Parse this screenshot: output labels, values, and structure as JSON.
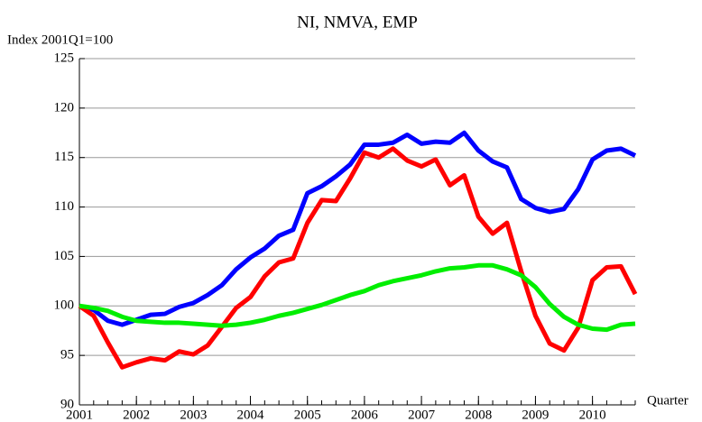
{
  "chart_data": {
    "type": "line",
    "title": "NI, NMVA, EMP",
    "ylabel": "Index 2001Q1=100",
    "xlabel": "Quarter",
    "x": [
      2001,
      2001.25,
      2001.5,
      2001.75,
      2002,
      2002.25,
      2002.5,
      2002.75,
      2003,
      2003.25,
      2003.5,
      2003.75,
      2004,
      2004.25,
      2004.5,
      2004.75,
      2005,
      2005.25,
      2005.5,
      2005.75,
      2006,
      2006.25,
      2006.5,
      2006.75,
      2007,
      2007.25,
      2007.5,
      2007.75,
      2008,
      2008.25,
      2008.5,
      2008.75,
      2009,
      2009.25,
      2009.5,
      2009.75,
      2010,
      2010.25,
      2010.5,
      2010.75
    ],
    "series": [
      {
        "color": "#0000ff",
        "values": [
          100,
          99.6,
          98.5,
          98.1,
          98.6,
          99.1,
          99.2,
          99.9,
          100.3,
          101.1,
          102.1,
          103.7,
          104.9,
          105.8,
          107.1,
          107.7,
          111.4,
          112.1,
          113.1,
          114.3,
          116.3,
          116.3,
          116.5,
          117.3,
          116.4,
          116.6,
          116.5,
          117.5,
          115.7,
          114.6,
          114.0,
          110.8,
          109.9,
          109.5,
          109.8,
          111.8,
          114.8,
          115.7,
          115.9,
          115.2
        ]
      },
      {
        "color": "#ff0000",
        "values": [
          100,
          99,
          96.3,
          93.8,
          94.3,
          94.7,
          94.5,
          95.4,
          95.1,
          96.0,
          97.9,
          99.8,
          100.9,
          103.0,
          104.4,
          104.8,
          108.4,
          110.7,
          110.6,
          112.9,
          115.5,
          115.0,
          115.9,
          114.7,
          114.1,
          114.8,
          112.2,
          113.2,
          109.0,
          107.3,
          108.4,
          103.5,
          99.0,
          96.2,
          95.5,
          97.8,
          102.6,
          103.9,
          104.0,
          101.2
        ]
      },
      {
        "color": "#00ee00",
        "values": [
          100,
          99.8,
          99.5,
          98.9,
          98.5,
          98.4,
          98.3,
          98.3,
          98.2,
          98.1,
          98.0,
          98.1,
          98.3,
          98.6,
          99.0,
          99.3,
          99.7,
          100.1,
          100.6,
          101.1,
          101.5,
          102.1,
          102.5,
          102.8,
          103.1,
          103.5,
          103.8,
          103.9,
          104.1,
          104.1,
          103.7,
          103.1,
          101.9,
          100.2,
          98.9,
          98.1,
          97.7,
          97.6,
          98.1,
          98.2
        ]
      }
    ],
    "xlim": [
      2001,
      2010.75
    ],
    "xticks": [
      2001,
      2002,
      2003,
      2004,
      2005,
      2006,
      2007,
      2008,
      2009,
      2010
    ],
    "ylim": [
      90,
      125
    ],
    "yticks": [
      90,
      95,
      100,
      105,
      110,
      115,
      120,
      125
    ],
    "grid": true
  }
}
